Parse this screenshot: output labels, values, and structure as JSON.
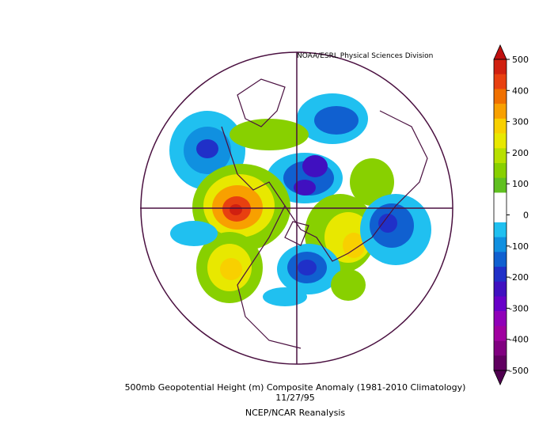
{
  "credit": "NOAA/ESRL Physical Sciences Division",
  "title": "500mb Geopotential Height (m) Composite Anomaly (1981-2010 Climatology)",
  "date": "11/27/95",
  "source": "NCEP/NCAR Reanalysis",
  "colorbar": {
    "ticks": [
      500,
      400,
      300,
      200,
      100,
      0,
      -100,
      -200,
      -300,
      -400,
      -500
    ],
    "colors": [
      "#d02010",
      "#e84010",
      "#f07000",
      "#f8a000",
      "#f8d000",
      "#e8e800",
      "#b8e000",
      "#88d000",
      "#60c020",
      "#ffffff",
      "#ffffff",
      "#20c0f0",
      "#1090e0",
      "#1060d0",
      "#2030c8",
      "#4010c0",
      "#6800c8",
      "#9000b8",
      "#a000a0",
      "#800080",
      "#600060"
    ],
    "top_color": "#c01010",
    "bottom_color": "#500050"
  }
}
